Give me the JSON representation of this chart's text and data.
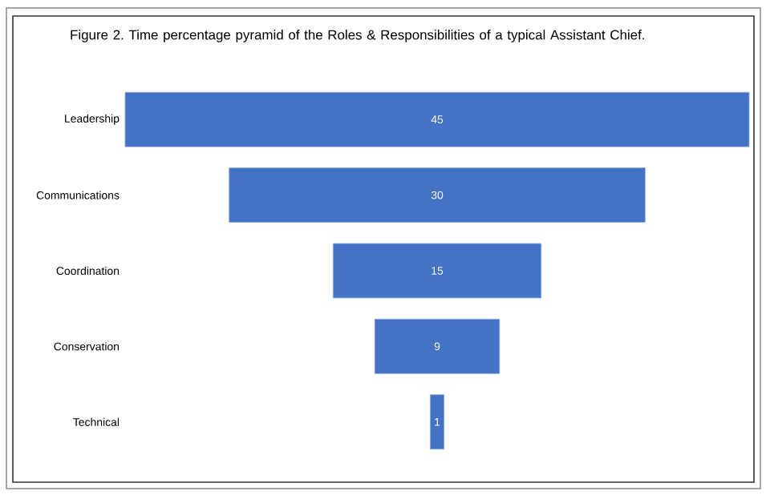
{
  "chart_data": {
    "type": "other",
    "title": "Figure 2. Time percentage pyramid of the Roles & Responsibilities of a typical Assistant Chief.",
    "categories": [
      "Leadership",
      "Communications",
      "Coordination",
      "Conservation",
      "Technical"
    ],
    "values": [
      45,
      30,
      15,
      9,
      1
    ],
    "color": "#4472c4",
    "data_labels": true
  }
}
